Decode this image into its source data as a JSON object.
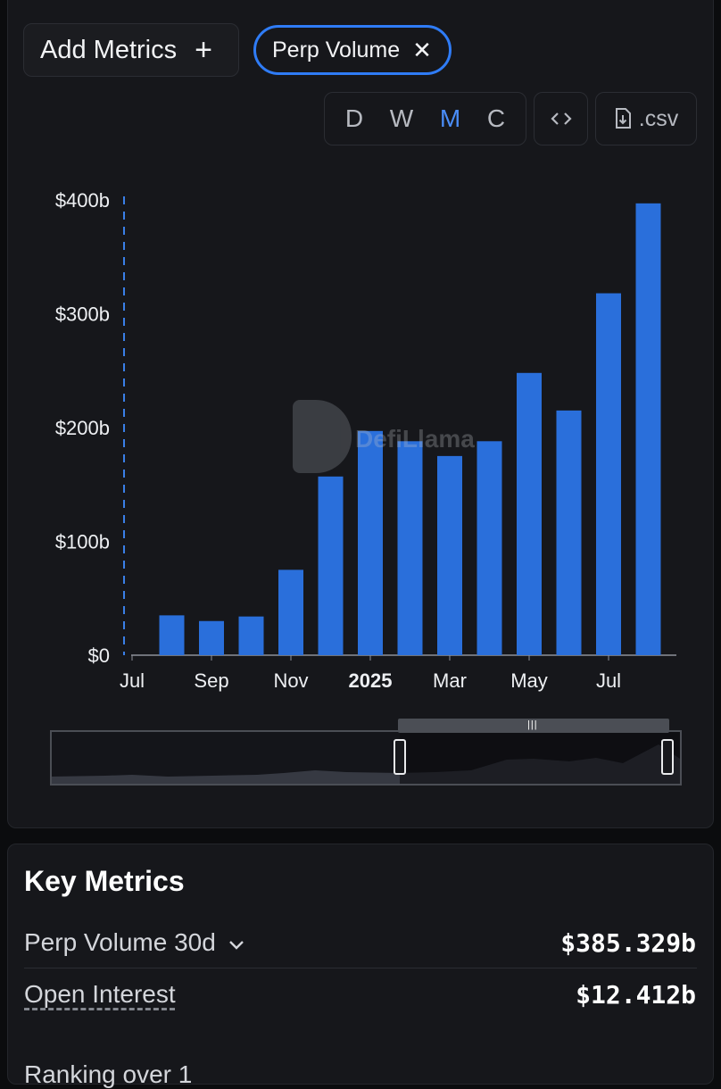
{
  "toolbar": {
    "add_metrics_label": "Add Metrics",
    "add_icon": "plus-icon",
    "active_metric_label": "Perp Volume",
    "remove_icon": "close-icon",
    "intervals": [
      "D",
      "W",
      "M",
      "C"
    ],
    "active_interval": "M",
    "embed_icon": "code-icon",
    "csv_label": ".csv",
    "csv_icon": "file-download-icon"
  },
  "watermark": {
    "text": "DefiLlama"
  },
  "colors": {
    "bar": "#2a6fdb",
    "accent": "#2f7cf6",
    "background": "#16171b"
  },
  "chart_data": {
    "type": "bar",
    "categories": [
      "2024-07",
      "2024-08",
      "2024-09",
      "2024-10",
      "2024-11",
      "2024-12",
      "2025-01",
      "2025-02",
      "2025-03",
      "2025-04",
      "2025-05",
      "2025-06",
      "2025-07",
      "2025-08"
    ],
    "values": [
      0,
      35,
      30,
      34,
      75,
      157,
      197,
      188,
      175,
      188,
      248,
      215,
      318,
      397
    ],
    "unit": "billions USD",
    "y_ticks": [
      "$0",
      "$100b",
      "$200b",
      "$300b",
      "$400b"
    ],
    "ylim": [
      0,
      400
    ],
    "x_tick_labels": [
      "Jul",
      "Sep",
      "Nov",
      "2025",
      "Mar",
      "May",
      "Jul"
    ],
    "grid": false
  },
  "key_metrics": {
    "title": "Key Metrics",
    "rows": [
      {
        "label": "Perp Volume 30d",
        "value": "$385.329b",
        "icon": "chevron-down-icon"
      },
      {
        "label": "Open Interest",
        "value": "$12.412b"
      }
    ],
    "cut_off_text": "Ranking over 1"
  }
}
